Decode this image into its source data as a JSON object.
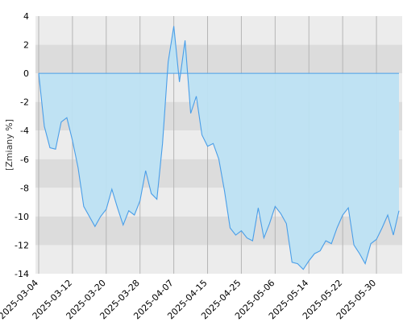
{
  "chart_data": {
    "type": "area",
    "title": "",
    "xlabel": "",
    "ylabel": "[Zmiany %]",
    "ylim": [
      -14,
      4
    ],
    "y_ticks": [
      4,
      2,
      0,
      -2,
      -4,
      -6,
      -8,
      -10,
      -12,
      -14
    ],
    "grid": true,
    "legend": "none",
    "x_tick_labels": [
      "2025-03-04",
      "2025-03-12",
      "2025-03-20",
      "2025-03-28",
      "2025-04-07",
      "2025-04-15",
      "2025-04-25",
      "2025-05-06",
      "2025-05-14",
      "2025-05-22",
      "2025-05-30"
    ],
    "x_tick_index": [
      0,
      6,
      12,
      18,
      24,
      30,
      36,
      42,
      48,
      54,
      60
    ],
    "series": [
      {
        "values": [
          0,
          -3.7,
          -5.2,
          -5.3,
          -3.4,
          -3.1,
          -4.7,
          -6.6,
          -9.3,
          -10.0,
          -10.7,
          -10.0,
          -9.5,
          -8.1,
          -9.4,
          -10.6,
          -9.6,
          -9.9,
          -8.9,
          -6.8,
          -8.4,
          -8.8,
          -4.9,
          0.8,
          3.3,
          -0.6,
          2.3,
          -2.8,
          -1.6,
          -4.3,
          -5.1,
          -4.9,
          -6.0,
          -8.2,
          -10.8,
          -11.3,
          -11.0,
          -11.5,
          -11.7,
          -9.4,
          -11.5,
          -10.5,
          -9.3,
          -9.8,
          -10.5,
          -13.2,
          -13.3,
          -13.7,
          -13.1,
          -12.6,
          -12.4,
          -11.7,
          -11.9,
          -10.8,
          -9.9,
          -9.4,
          -12.0,
          -12.6,
          -13.3,
          -11.9,
          -11.6,
          -10.8,
          -9.9,
          -11.3,
          -9.6
        ]
      }
    ],
    "colors": {
      "line": "#4a9ee8",
      "fill": "#bde1f3",
      "band_light": "#ececec",
      "band_dark": "#dcdcdc",
      "vgrid": "#b5b5b5"
    }
  }
}
